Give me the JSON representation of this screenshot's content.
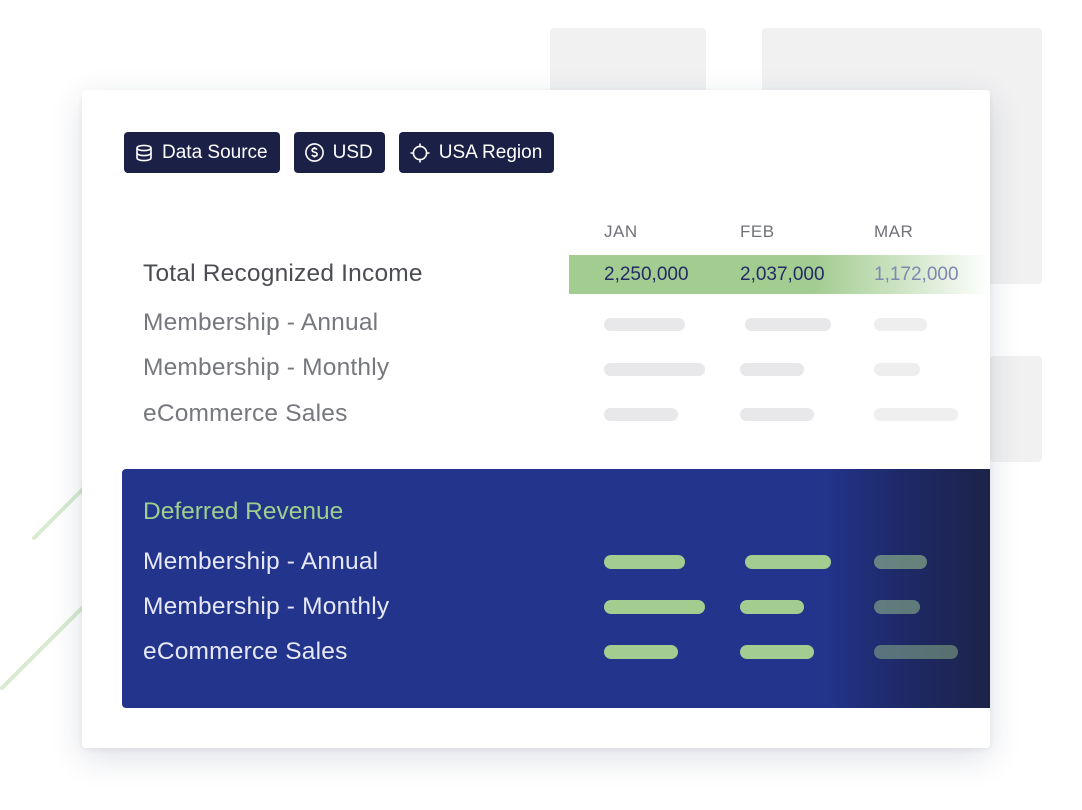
{
  "filters": {
    "data_source": {
      "label": "Data Source",
      "icon": "database-icon"
    },
    "currency": {
      "label": "USD",
      "icon": "dollar-circle-icon"
    },
    "region": {
      "label": "USA Region",
      "icon": "crosshair-icon"
    }
  },
  "months": [
    "JAN",
    "FEB",
    "MAR"
  ],
  "income": {
    "title": "Total Recognized Income",
    "totals": [
      "2,250,000",
      "2,037,000",
      "1,172,000"
    ],
    "rows": [
      "Membership - Annual",
      "Membership - Monthly",
      "eCommerce Sales"
    ]
  },
  "deferred": {
    "title": "Deferred Revenue",
    "rows": [
      "Membership - Annual",
      "Membership - Monthly",
      "eCommerce Sales"
    ]
  },
  "colors": {
    "chip_bg": "#1b2146",
    "accent_green": "#a2cc90",
    "deferred_bg": "#22348c",
    "total_text": "#232a66"
  }
}
